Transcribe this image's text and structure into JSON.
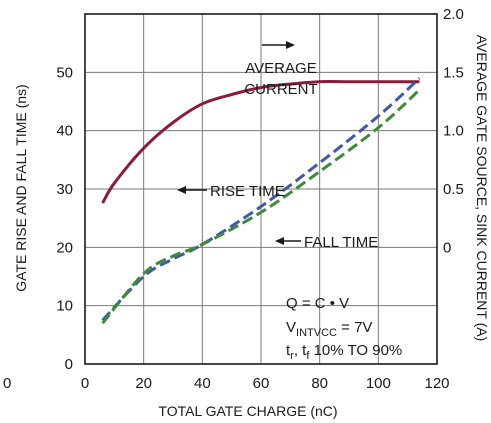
{
  "chart_data": {
    "type": "line",
    "xlabel": "TOTAL GATE CHARGE (nC)",
    "ylabel_left": "GATE RISE AND FALL TIME (ns)",
    "ylabel_right": "AVERAGE GATE SOURCE, SINK CURRENT (A)",
    "xlim": [
      0,
      120
    ],
    "ylim_left": [
      0,
      60
    ],
    "ylim_right": [
      -1.0,
      2.0
    ],
    "x_ticks": [
      0,
      20,
      40,
      60,
      80,
      100,
      120
    ],
    "y_ticks_left": [
      0,
      10,
      20,
      30,
      40,
      50
    ],
    "y_ticks_right": [
      "0",
      "0.5",
      "1.0",
      "1.5",
      "2.0"
    ],
    "y_ticks_right_values": [
      0,
      0.5,
      1.0,
      1.5,
      2.0
    ],
    "stray_label": "0",
    "grid": true,
    "series": [
      {
        "key": "average_current",
        "axis": "right",
        "style": "solid",
        "color": "#8b1a3c",
        "x": [
          6,
          10,
          20,
          30,
          40,
          50,
          60,
          70,
          80,
          90,
          100,
          114
        ],
        "y": [
          0.38,
          0.55,
          0.85,
          1.07,
          1.23,
          1.31,
          1.37,
          1.4,
          1.42,
          1.42,
          1.42,
          1.42
        ]
      },
      {
        "key": "rise_time",
        "axis": "left",
        "style": "dashed",
        "color": "#3f58a8",
        "x": [
          6,
          20,
          30,
          40,
          60,
          80,
          100,
          114
        ],
        "y": [
          7.5,
          15,
          18,
          20.5,
          27,
          34.5,
          42.5,
          49
        ]
      },
      {
        "key": "fall_time",
        "axis": "left",
        "style": "dashed",
        "color": "#3e8a3a",
        "x": [
          6,
          20,
          30,
          40,
          60,
          80,
          100,
          114
        ],
        "y": [
          7,
          15.5,
          18.5,
          20.5,
          26,
          33,
          40.5,
          47
        ]
      }
    ],
    "annotations": {
      "average_current": [
        "AVERAGE",
        "CURRENT"
      ],
      "rise_time": "RISE TIME",
      "fall_time": "FALL TIME",
      "formula": "Q = C • V",
      "vintvcc_main": "V",
      "vintvcc_sub": "INTVCC",
      "vintvcc_value": " = 7V",
      "timing_t1": "t",
      "timing_r": "r",
      "timing_sep": ", t",
      "timing_f": "f",
      "timing_rest": " 10% TO 90%"
    }
  }
}
